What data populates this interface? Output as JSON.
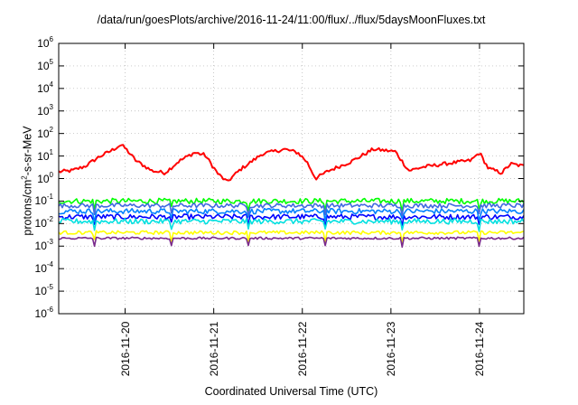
{
  "chart_data": {
    "type": "line",
    "title": "/data/run/goesPlots/archive/2016-11-24/11:00/flux/../flux/5daysMoonFluxes.txt",
    "xlabel": "Coordinated Universal Time (UTC)",
    "ylabel_parts": {
      "pre": "protons/cm",
      "sup": "2",
      "post": "-s-sr-MeV"
    },
    "yscale": "log",
    "ylim_exp": [
      -6,
      6
    ],
    "y_tick_labels": [
      {
        "base": "10",
        "exp": "6"
      },
      {
        "base": "10",
        "exp": "5"
      },
      {
        "base": "10",
        "exp": "4"
      },
      {
        "base": "10",
        "exp": "3"
      },
      {
        "base": "10",
        "exp": "2"
      },
      {
        "base": "10",
        "exp": "1"
      },
      {
        "base": "10",
        "exp": "0"
      },
      {
        "base": "10",
        "exp": "-1"
      },
      {
        "base": "10",
        "exp": "-2"
      },
      {
        "base": "10",
        "exp": "-3"
      },
      {
        "base": "10",
        "exp": "-4"
      },
      {
        "base": "10",
        "exp": "-5"
      },
      {
        "base": "10",
        "exp": "-6"
      }
    ],
    "x_range_days": [
      -0.75,
      4.5
    ],
    "x_ticks": [
      "2016-11-20",
      "2016-11-21",
      "2016-11-22",
      "2016-11-23",
      "2016-11-24"
    ],
    "grid": true,
    "series": [
      {
        "color": "#ff0000",
        "base": 0.2,
        "shape": [
          [
            -0.75,
            0.1
          ],
          [
            -0.6,
            0.15
          ],
          [
            -0.45,
            0.35
          ],
          [
            -0.3,
            0.75
          ],
          [
            -0.15,
            1.05
          ],
          [
            -0.05,
            1.3
          ],
          [
            0.0,
            1.15
          ],
          [
            0.12,
            0.6
          ],
          [
            0.3,
            0.15
          ],
          [
            0.45,
            0.05
          ],
          [
            0.6,
            0.55
          ],
          [
            0.78,
            0.95
          ],
          [
            0.9,
            0.85
          ],
          [
            1.05,
            0.0
          ],
          [
            1.15,
            -0.35
          ],
          [
            1.3,
            0.2
          ],
          [
            1.55,
            0.9
          ],
          [
            1.8,
            1.1
          ],
          [
            1.95,
            0.95
          ],
          [
            2.05,
            0.55
          ],
          [
            2.15,
            -0.2
          ],
          [
            2.3,
            0.15
          ],
          [
            2.55,
            0.55
          ],
          [
            2.8,
            1.1
          ],
          [
            3.05,
            1.0
          ],
          [
            3.2,
            0.15
          ],
          [
            3.35,
            0.3
          ],
          [
            3.6,
            0.45
          ],
          [
            3.9,
            0.6
          ],
          [
            4.0,
            0.95
          ],
          [
            4.1,
            0.25
          ],
          [
            4.25,
            0.05
          ],
          [
            4.35,
            0.45
          ],
          [
            4.5,
            0.35
          ]
        ],
        "noise": 0.08
      },
      {
        "color": "#00ff00",
        "base": -1.0,
        "shape": [
          [
            -0.75,
            0.0
          ],
          [
            4.5,
            0.0
          ]
        ],
        "noise": 0.12
      },
      {
        "color": "#0000ff",
        "base": -1.7,
        "shape": [
          [
            -0.75,
            0.0
          ],
          [
            4.5,
            0.0
          ]
        ],
        "noise": 0.12
      },
      {
        "color": "#0080ff",
        "base": -1.45,
        "shape": [
          [
            -0.75,
            0.0
          ],
          [
            4.5,
            0.0
          ]
        ],
        "noise": 0.12
      },
      {
        "color": "#4169e1",
        "base": -1.2,
        "shape": [
          [
            -0.75,
            0.0
          ],
          [
            4.5,
            0.0
          ]
        ],
        "noise": 0.1
      },
      {
        "color": "#00e0e0",
        "base": -1.9,
        "shape": [
          [
            -0.75,
            0.0
          ],
          [
            4.5,
            0.0
          ]
        ],
        "noise": 0.12
      },
      {
        "color": "#ffff00",
        "base": -2.4,
        "shape": [
          [
            -0.75,
            0.0
          ],
          [
            4.5,
            0.0
          ]
        ],
        "noise": 0.08
      },
      {
        "color": "#7a2a8c",
        "base": -2.65,
        "shape": [
          [
            -0.75,
            0.0
          ],
          [
            4.5,
            0.0
          ]
        ],
        "noise": 0.05
      }
    ]
  }
}
